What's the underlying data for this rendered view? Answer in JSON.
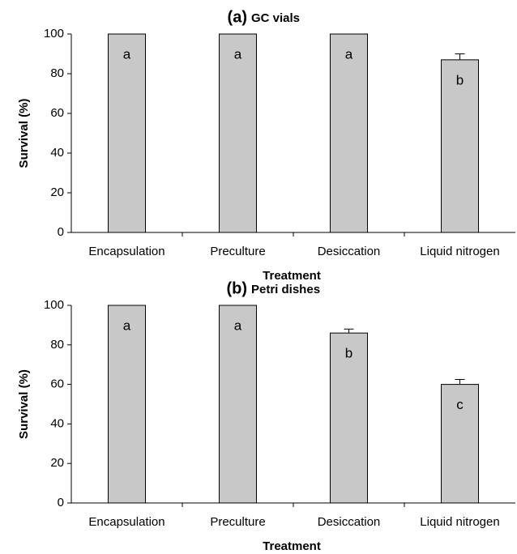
{
  "chart_data": [
    {
      "type": "bar",
      "panel": "(a)",
      "title": "GC vials",
      "xlabel": "Treatment",
      "ylabel": "Survival (%)",
      "categories": [
        "Encapsulation",
        "Preculture",
        "Desiccation",
        "Liquid nitrogen"
      ],
      "values": [
        100,
        100,
        100,
        87
      ],
      "errors": [
        0,
        0,
        0,
        3
      ],
      "letters": [
        "a",
        "a",
        "a",
        "b"
      ],
      "color": "#c8c8c8",
      "ylim": [
        0,
        100
      ],
      "yticks": [
        0,
        20,
        40,
        60,
        80,
        100
      ],
      "grid": false
    },
    {
      "type": "bar",
      "panel": "(b)",
      "title": "Petri dishes",
      "xlabel": "Treatment",
      "ylabel": "Survival (%)",
      "categories": [
        "Encapsulation",
        "Preculture",
        "Desiccation",
        "Liquid nitrogen"
      ],
      "values": [
        100,
        100,
        86,
        60
      ],
      "errors": [
        0,
        0,
        2,
        2.5
      ],
      "letters": [
        "a",
        "a",
        "b",
        "c"
      ],
      "color": "#c8c8c8",
      "ylim": [
        0,
        100
      ],
      "yticks": [
        0,
        20,
        40,
        60,
        80,
        100
      ],
      "grid": false
    }
  ]
}
